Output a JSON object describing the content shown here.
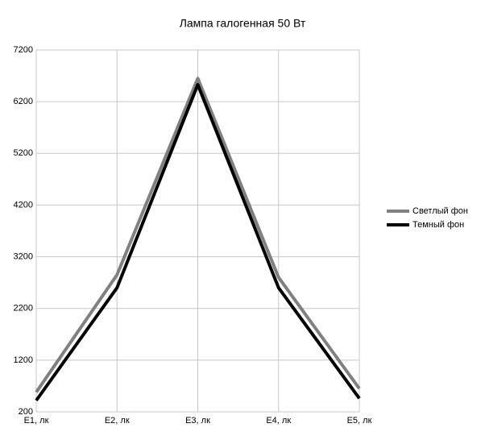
{
  "chart_data": {
    "type": "line",
    "title": "Лампа галогенная 50 Вт",
    "categories": [
      "E1, лк",
      "E2, лк",
      "E3, лк",
      "E4, лк",
      "E5, лк"
    ],
    "series": [
      {
        "name": "Светлый фон",
        "color": "#808080",
        "values": [
          580,
          2850,
          6650,
          2800,
          650
        ]
      },
      {
        "name": "Темный фон",
        "color": "#000000",
        "values": [
          420,
          2600,
          6530,
          2600,
          460
        ]
      }
    ],
    "ylim": [
      200,
      7200
    ],
    "yticks": [
      200,
      1200,
      2200,
      3200,
      4200,
      5200,
      6200,
      7200
    ],
    "grid": true,
    "legend": "right"
  }
}
